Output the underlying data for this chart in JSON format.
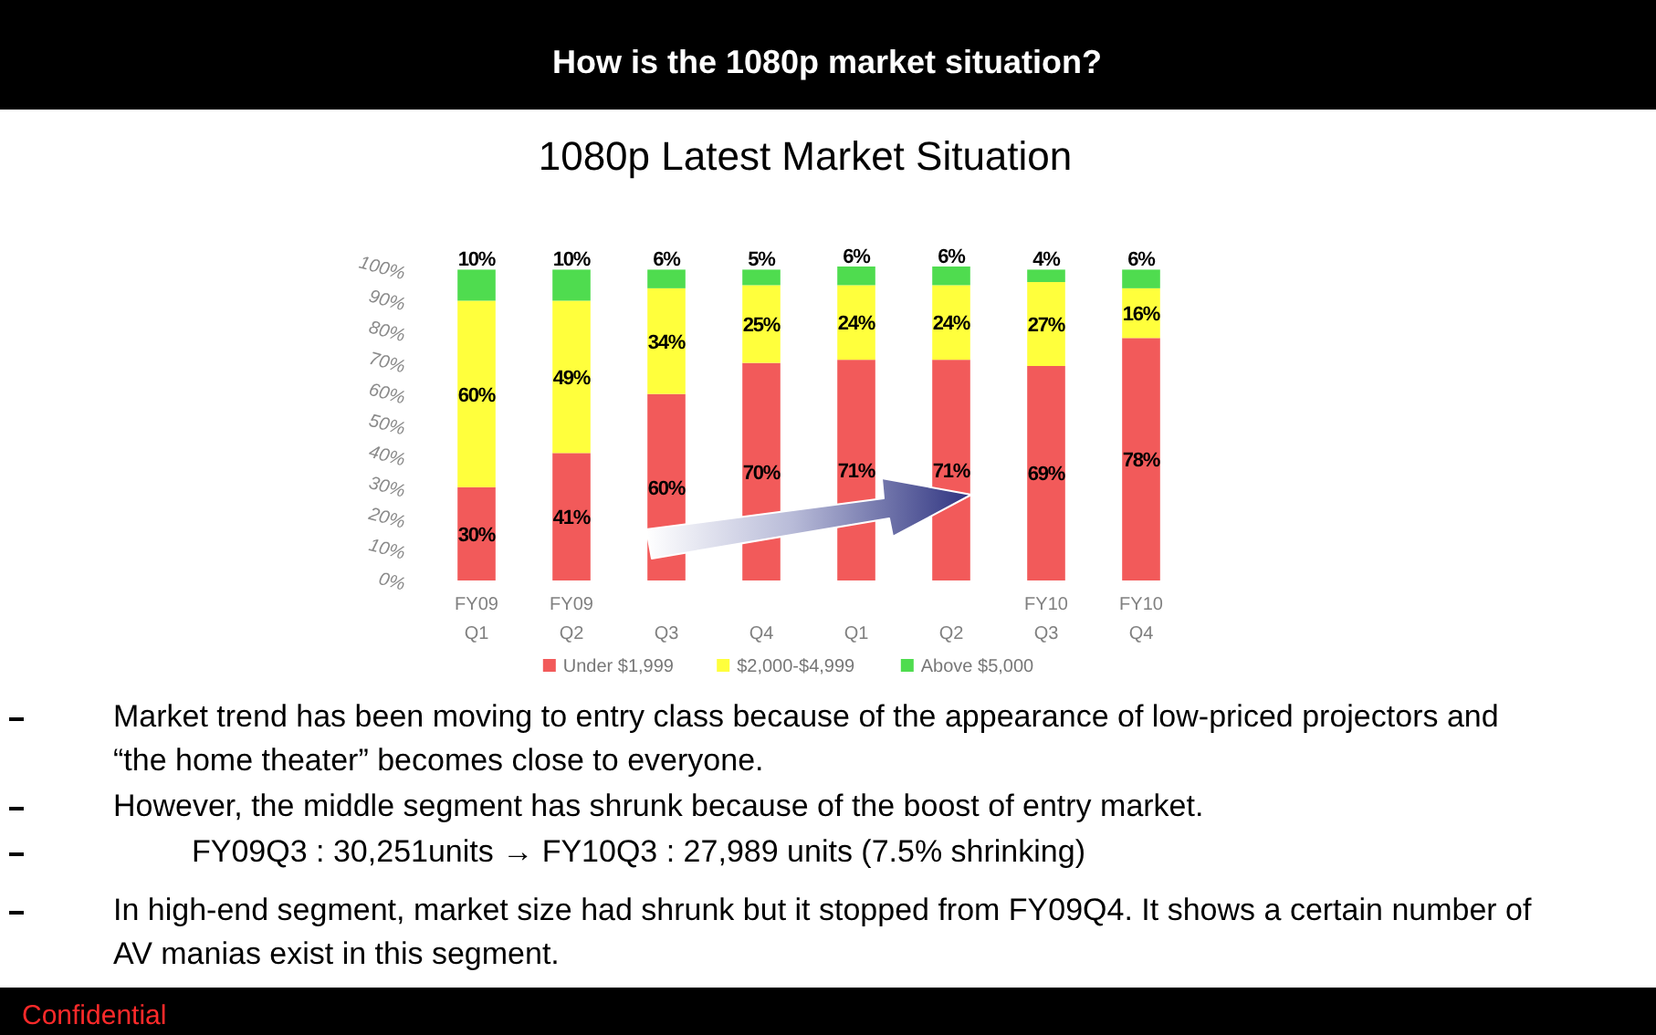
{
  "chart_data": {
    "type": "bar",
    "title": "How is the 1080p market situation?",
    "subtitle": "1080p Latest Market Situation",
    "categories": [
      "FY09\nQ1",
      "FY09\nQ2",
      "Q3",
      "Q4",
      "Q1",
      "Q2",
      "FY10\nQ3",
      "FY10\nQ4"
    ],
    "stacked": true,
    "series": [
      {
        "name": "Under $1,999",
        "color": "#f25a5a",
        "values": [
          30,
          41,
          60,
          70,
          71,
          71,
          69,
          78
        ],
        "value_labels": [
          "30%",
          "41%",
          "60%",
          "70%",
          "71%",
          "71%",
          "69%",
          "78%"
        ]
      },
      {
        "name": "$2,000-$4,999",
        "color": "#ffff3c",
        "values": [
          60,
          49,
          34,
          25,
          24,
          24,
          27,
          16
        ],
        "value_labels": [
          "60%",
          "49%",
          "34%",
          "25%",
          "24%",
          "24%",
          "27%",
          "16%"
        ]
      },
      {
        "name": "Above $5,000",
        "color": "#4fdc4f",
        "values": [
          10,
          10,
          6,
          5,
          6,
          6,
          4,
          6
        ],
        "value_labels": [
          "10%",
          "10%",
          "6%",
          "5%",
          "6%",
          "6%",
          "4%",
          "6%"
        ]
      }
    ],
    "ylim": [
      0,
      101
    ],
    "yticks": [
      {
        "value": 0,
        "label": "0%"
      },
      {
        "value": 10,
        "label": "10%"
      },
      {
        "value": 20,
        "label": "20%"
      },
      {
        "value": 30,
        "label": "30%"
      },
      {
        "value": 40,
        "label": "40%"
      },
      {
        "value": 50,
        "label": "50%"
      },
      {
        "value": 60,
        "label": "60%"
      },
      {
        "value": 70,
        "label": "70%"
      },
      {
        "value": 80,
        "label": "80%"
      },
      {
        "value": 90,
        "label": "90%"
      },
      {
        "value": 100,
        "label": "100%"
      }
    ],
    "legend": "bottom",
    "annotations": [
      "Market trend has been moving to entry class because of the appearance of low-priced projectors and “the home theater” becomes close to everyone.",
      "However, the middle segment has shrunk because of the boost of entry market.",
      "FY09Q3 : 30,251units → FY10Q3 : 27,989 units (7.5% shrinking)",
      "In high-end segment, market size had shrunk but it stopped from FY09Q4. It shows a certain number of AV manias exist in this segment.",
      "Confidential"
    ]
  }
}
